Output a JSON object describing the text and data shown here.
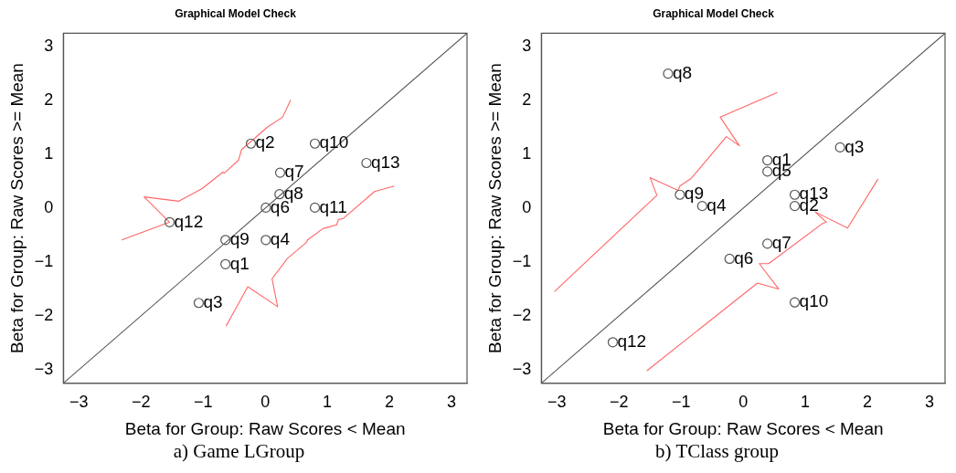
{
  "chart_data": [
    {
      "type": "scatter",
      "title": "Graphical Model Check",
      "xlabel": "Beta for Group: Raw Scores < Mean",
      "ylabel": "Beta for Group: Raw Scores >= Mean",
      "xlim": [
        -3.25,
        3.25
      ],
      "ylim": [
        -3.25,
        3.25
      ],
      "xticks": [
        -3,
        -2,
        -1,
        0,
        1,
        2,
        3
      ],
      "yticks": [
        -3,
        -2,
        -1,
        0,
        1,
        2,
        3
      ],
      "grid": false,
      "legend": false,
      "marker": "circle",
      "x": [
        -0.64,
        -0.23,
        -1.07,
        0.01,
        0.01,
        0.24,
        0.23,
        -0.64,
        0.8,
        0.8,
        -1.54,
        1.63
      ],
      "series": [
        {
          "color": "#555555",
          "values": [
            -1.04,
            1.2,
            -1.76,
            -0.59,
            0.01,
            0.66,
            0.26,
            -0.59,
            1.2,
            0.01,
            -0.26,
            0.84
          ]
        },
        {
          "type": "line",
          "marker": "none",
          "color": "#ff6666",
          "x": [
            -2.31,
            -1.54,
            -1.95,
            -1.39,
            -1.02,
            -0.68,
            -0.66,
            -0.43,
            -0.38,
            -0.21,
            0.04,
            0.28,
            0.41
          ],
          "values": [
            -0.59,
            -0.26,
            0.21,
            0.13,
            0.36,
            0.67,
            0.65,
            0.89,
            1.09,
            1.26,
            1.51,
            1.69,
            2.01
          ]
        },
        {
          "type": "line",
          "marker": "none",
          "color": "#ff6666",
          "x": [
            -0.63,
            -0.28,
            0.2,
            0.11,
            0.36,
            0.67,
            0.68,
            0.93,
            1.15,
            1.18,
            1.26,
            1.76,
            2.08
          ],
          "values": [
            -2.19,
            -1.46,
            -1.83,
            -1.31,
            -0.93,
            -0.63,
            -0.59,
            -0.38,
            -0.31,
            -0.21,
            -0.19,
            0.31,
            0.41
          ]
        },
        {
          "type": "line",
          "marker": "none",
          "color": "#555555",
          "x": [
            -3.25,
            3.25
          ],
          "values": [
            -3.25,
            3.25
          ]
        }
      ],
      "annotations": [
        {
          "text": "q1",
          "x": -0.64,
          "y": -1.04
        },
        {
          "text": "q2",
          "x": -0.23,
          "y": 1.2
        },
        {
          "text": "q3",
          "x": -1.07,
          "y": -1.76
        },
        {
          "text": "q4",
          "x": 0.01,
          "y": -0.59
        },
        {
          "text": "q6",
          "x": 0.01,
          "y": 0.01
        },
        {
          "text": "q7",
          "x": 0.24,
          "y": 0.66
        },
        {
          "text": "q8",
          "x": 0.23,
          "y": 0.26
        },
        {
          "text": "q9",
          "x": -0.64,
          "y": -0.59
        },
        {
          "text": "q10",
          "x": 0.8,
          "y": 1.2
        },
        {
          "text": "q11",
          "x": 0.8,
          "y": 0.01
        },
        {
          "text": "q12",
          "x": -1.54,
          "y": -0.26
        },
        {
          "text": "q13",
          "x": 1.63,
          "y": 0.84
        },
        "a) Game LGroup"
      ]
    },
    {
      "type": "scatter",
      "title": "Graphical Model Check",
      "xlabel": "Beta for Group: Raw Scores < Mean",
      "ylabel": "Beta for Group: Raw Scores >= Mean",
      "xlim": [
        -3.25,
        3.25
      ],
      "ylim": [
        -3.25,
        3.25
      ],
      "xticks": [
        -3,
        -2,
        -1,
        0,
        1,
        2,
        3
      ],
      "yticks": [
        -3,
        -2,
        -1,
        0,
        1,
        2,
        3
      ],
      "grid": false,
      "legend": false,
      "marker": "circle",
      "x": [
        0.39,
        0.83,
        1.56,
        -0.66,
        0.39,
        -0.22,
        0.39,
        -1.21,
        -1.02,
        0.83,
        -2.1,
        0.83
      ],
      "series": [
        {
          "color": "#555555",
          "values": [
            0.89,
            0.04,
            1.13,
            0.04,
            0.68,
            -0.94,
            -0.66,
            2.5,
            0.25,
            -1.75,
            -2.49,
            0.25
          ]
        },
        {
          "type": "line",
          "marker": "none",
          "color": "#ff6666",
          "x": [
            -3.04,
            -1.39,
            -1.5,
            -1.05,
            -1.02,
            -0.84,
            -0.27,
            -0.06,
            -0.37,
            0.55
          ],
          "values": [
            -1.55,
            0.24,
            0.57,
            0.33,
            0.41,
            0.55,
            1.33,
            1.16,
            1.69,
            2.15
          ]
        },
        {
          "type": "line",
          "marker": "none",
          "color": "#ff6666",
          "x": [
            -1.55,
            0.23,
            0.57,
            0.26,
            0.41,
            1.27,
            1.34,
            1.16,
            1.68,
            2.17
          ],
          "values": [
            -3.02,
            -1.39,
            -1.5,
            -1.03,
            -1.03,
            -0.29,
            -0.26,
            -0.07,
            -0.37,
            0.54
          ]
        },
        {
          "type": "line",
          "marker": "none",
          "color": "#555555",
          "x": [
            -3.25,
            3.25
          ],
          "values": [
            -3.25,
            3.25
          ]
        }
      ],
      "annotations": [
        {
          "text": "q1",
          "x": 0.39,
          "y": 0.89
        },
        {
          "text": "q2",
          "x": 0.83,
          "y": 0.04
        },
        {
          "text": "q3",
          "x": 1.56,
          "y": 1.13
        },
        {
          "text": "q4",
          "x": -0.66,
          "y": 0.04
        },
        {
          "text": "q5",
          "x": 0.39,
          "y": 0.68
        },
        {
          "text": "q6",
          "x": -0.22,
          "y": -0.94
        },
        {
          "text": "q7",
          "x": 0.39,
          "y": -0.66
        },
        {
          "text": "q8",
          "x": -1.21,
          "y": 2.5
        },
        {
          "text": "q9",
          "x": -1.02,
          "y": 0.25
        },
        {
          "text": "q10",
          "x": 0.83,
          "y": -1.75
        },
        {
          "text": "q12",
          "x": -2.1,
          "y": -2.49
        },
        {
          "text": "q13",
          "x": 0.83,
          "y": 0.25
        },
        "b) TClass group"
      ]
    }
  ]
}
